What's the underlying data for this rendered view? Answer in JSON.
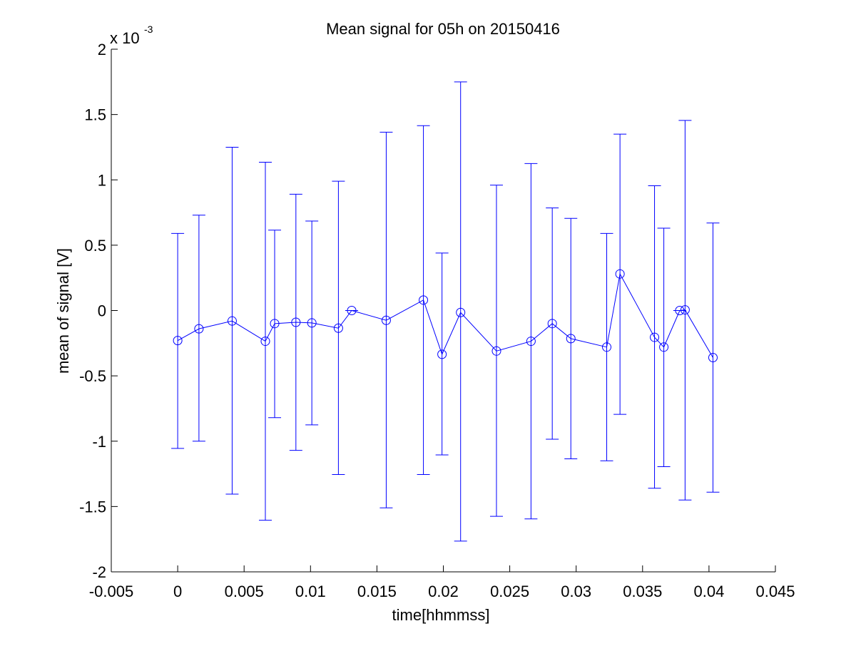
{
  "chart_data": {
    "type": "line",
    "title": "Mean signal for 05h on 20150416",
    "xlabel": "time[hhmmss]",
    "ylabel": "mean of signal [V]",
    "y_exponent_label": "x 10",
    "y_exponent_power": "-3",
    "xlim": [
      -0.005,
      0.045
    ],
    "ylim": [
      -2,
      2
    ],
    "xticks": [
      -0.005,
      0,
      0.005,
      0.01,
      0.015,
      0.02,
      0.025,
      0.03,
      0.035,
      0.04,
      0.045
    ],
    "xtick_labels": [
      "-0.005",
      "0",
      "0.005",
      "0.01",
      "0.015",
      "0.02",
      "0.025",
      "0.03",
      "0.035",
      "0.04",
      "0.045"
    ],
    "yticks": [
      -2,
      -1.5,
      -1,
      -0.5,
      0,
      0.5,
      1,
      1.5,
      2
    ],
    "ytick_labels": [
      "-2",
      "-1.5",
      "-1",
      "-0.5",
      "0",
      "0.5",
      "1",
      "1.5",
      "2"
    ],
    "grid": false,
    "line_color": "#0000ff",
    "marker": "circle",
    "series": [
      {
        "x": [
          0,
          0.0016,
          0.0041,
          0.0066,
          0.0073,
          0.0089,
          0.0101,
          0.0121,
          0.0131,
          0.0157,
          0.0185,
          0.0199,
          0.0213,
          0.024,
          0.0266,
          0.0282,
          0.0296,
          0.0323,
          0.0333,
          0.0359,
          0.0366,
          0.0378,
          0.0382,
          0.0403
        ],
        "y": [
          -0.23,
          -0.14,
          -0.08,
          -0.235,
          -0.1,
          -0.09,
          -0.095,
          -0.135,
          0.0,
          -0.075,
          0.08,
          -0.335,
          -0.015,
          -0.31,
          -0.235,
          -0.1,
          -0.215,
          -0.28,
          0.28,
          -0.205,
          -0.28,
          0.0,
          0.005,
          -0.36
        ],
        "err_upper": [
          0.59,
          0.73,
          1.25,
          1.135,
          0.615,
          0.89,
          0.685,
          0.99,
          0.0,
          1.365,
          1.415,
          0.44,
          1.75,
          0.96,
          1.125,
          0.785,
          0.705,
          0.59,
          1.35,
          0.955,
          0.63,
          0.0,
          1.455,
          0.67
        ],
        "err_lower": [
          -1.055,
          -1.0,
          -1.405,
          -1.605,
          -0.82,
          -1.07,
          -0.875,
          -1.255,
          0.0,
          -1.51,
          -1.255,
          -1.105,
          -1.765,
          -1.575,
          -1.595,
          -0.985,
          -1.135,
          -1.15,
          -0.795,
          -1.36,
          -1.195,
          0.0,
          -1.45,
          -1.39
        ]
      }
    ]
  }
}
